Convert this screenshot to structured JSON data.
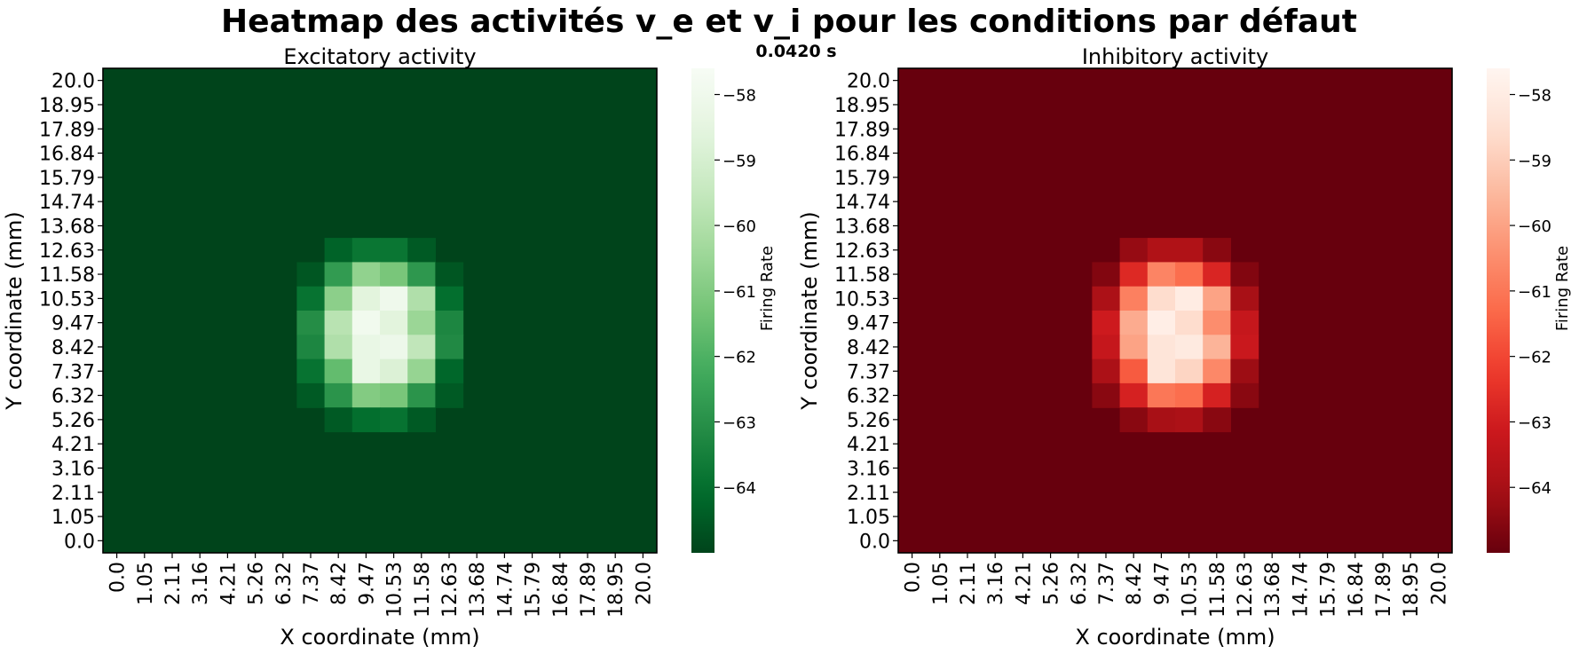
{
  "figure": {
    "suptitle": "Heatmap des activités v_e et v_i pour les conditions par défaut",
    "time_label": "0.0420 s"
  },
  "chart_data": [
    {
      "type": "heatmap",
      "title": "Excitatory activity",
      "xlabel": "X coordinate (mm)",
      "ylabel": "Y coordinate (mm)",
      "colorbar_label": "Firing Rate",
      "colormap": "Greens",
      "color_low": "#00441b",
      "color_high": "#f7fcf5",
      "x_ticks": [
        "0.0",
        "1.05",
        "2.11",
        "3.16",
        "4.21",
        "5.26",
        "6.32",
        "7.37",
        "8.42",
        "9.47",
        "10.53",
        "11.58",
        "12.63",
        "13.68",
        "14.74",
        "15.79",
        "16.84",
        "17.89",
        "18.95",
        "20.0"
      ],
      "y_ticks": [
        "20.0",
        "18.95",
        "17.89",
        "16.84",
        "15.79",
        "14.74",
        "13.68",
        "12.63",
        "11.58",
        "10.53",
        "9.47",
        "8.42",
        "7.37",
        "6.32",
        "5.26",
        "4.21",
        "3.16",
        "2.11",
        "1.05",
        "0.0"
      ],
      "colorbar_ticks": [
        -58,
        -59,
        -60,
        -61,
        -62,
        -63,
        -64
      ],
      "vmin": -65.0,
      "vmax": -57.6,
      "background_value": -65.0,
      "grid": false,
      "cells": [
        {
          "row": 7,
          "col": 8,
          "value": -64.3
        },
        {
          "row": 7,
          "col": 9,
          "value": -63.8
        },
        {
          "row": 7,
          "col": 10,
          "value": -63.8
        },
        {
          "row": 7,
          "col": 11,
          "value": -64.5
        },
        {
          "row": 8,
          "col": 7,
          "value": -64.6
        },
        {
          "row": 8,
          "col": 8,
          "value": -62.7
        },
        {
          "row": 8,
          "col": 9,
          "value": -60.7
        },
        {
          "row": 8,
          "col": 10,
          "value": -61.2
        },
        {
          "row": 8,
          "col": 11,
          "value": -62.8
        },
        {
          "row": 8,
          "col": 12,
          "value": -64.6
        },
        {
          "row": 9,
          "col": 7,
          "value": -63.9
        },
        {
          "row": 9,
          "col": 8,
          "value": -60.8
        },
        {
          "row": 9,
          "col": 9,
          "value": -58.6
        },
        {
          "row": 9,
          "col": 10,
          "value": -58.0
        },
        {
          "row": 9,
          "col": 11,
          "value": -60.0
        },
        {
          "row": 9,
          "col": 12,
          "value": -64.0
        },
        {
          "row": 10,
          "col": 7,
          "value": -63.1
        },
        {
          "row": 10,
          "col": 8,
          "value": -59.8
        },
        {
          "row": 10,
          "col": 9,
          "value": -57.9
        },
        {
          "row": 10,
          "col": 10,
          "value": -58.6
        },
        {
          "row": 10,
          "col": 11,
          "value": -60.5
        },
        {
          "row": 10,
          "col": 12,
          "value": -63.3
        },
        {
          "row": 11,
          "col": 7,
          "value": -63.3
        },
        {
          "row": 11,
          "col": 8,
          "value": -60.0
        },
        {
          "row": 11,
          "col": 9,
          "value": -58.3
        },
        {
          "row": 11,
          "col": 10,
          "value": -58.1
        },
        {
          "row": 11,
          "col": 11,
          "value": -59.6
        },
        {
          "row": 11,
          "col": 12,
          "value": -63.2
        },
        {
          "row": 12,
          "col": 7,
          "value": -63.9
        },
        {
          "row": 12,
          "col": 8,
          "value": -61.6
        },
        {
          "row": 12,
          "col": 9,
          "value": -58.3
        },
        {
          "row": 12,
          "col": 10,
          "value": -58.8
        },
        {
          "row": 12,
          "col": 11,
          "value": -60.6
        },
        {
          "row": 12,
          "col": 12,
          "value": -64.2
        },
        {
          "row": 13,
          "col": 7,
          "value": -64.5
        },
        {
          "row": 13,
          "col": 8,
          "value": -62.9
        },
        {
          "row": 13,
          "col": 9,
          "value": -61.0
        },
        {
          "row": 13,
          "col": 10,
          "value": -61.2
        },
        {
          "row": 13,
          "col": 11,
          "value": -62.9
        },
        {
          "row": 13,
          "col": 12,
          "value": -64.5
        },
        {
          "row": 14,
          "col": 8,
          "value": -64.5
        },
        {
          "row": 14,
          "col": 9,
          "value": -64.0
        },
        {
          "row": 14,
          "col": 10,
          "value": -63.9
        },
        {
          "row": 14,
          "col": 11,
          "value": -64.5
        }
      ]
    },
    {
      "type": "heatmap",
      "title": "Inhibitory activity",
      "xlabel": "X coordinate (mm)",
      "ylabel": "Y coordinate (mm)",
      "colorbar_label": "Firing Rate",
      "colormap": "Reds",
      "color_low": "#67000d",
      "color_high": "#fff5f0",
      "x_ticks": [
        "0.0",
        "1.05",
        "2.11",
        "3.16",
        "4.21",
        "5.26",
        "6.32",
        "7.37",
        "8.42",
        "9.47",
        "10.53",
        "11.58",
        "12.63",
        "13.68",
        "14.74",
        "15.79",
        "16.84",
        "17.89",
        "18.95",
        "20.0"
      ],
      "y_ticks": [
        "20.0",
        "18.95",
        "17.89",
        "16.84",
        "15.79",
        "14.74",
        "13.68",
        "12.63",
        "11.58",
        "10.53",
        "9.47",
        "8.42",
        "7.37",
        "6.32",
        "5.26",
        "4.21",
        "3.16",
        "2.11",
        "1.05",
        "0.0"
      ],
      "colorbar_ticks": [
        -58,
        -59,
        -60,
        -61,
        -62,
        -63,
        -64
      ],
      "vmin": -65.0,
      "vmax": -57.6,
      "background_value": -65.0,
      "grid": false,
      "cells": [
        {
          "row": 7,
          "col": 8,
          "value": -64.3
        },
        {
          "row": 7,
          "col": 9,
          "value": -63.8
        },
        {
          "row": 7,
          "col": 10,
          "value": -63.8
        },
        {
          "row": 7,
          "col": 11,
          "value": -64.5
        },
        {
          "row": 8,
          "col": 7,
          "value": -64.6
        },
        {
          "row": 8,
          "col": 8,
          "value": -62.7
        },
        {
          "row": 8,
          "col": 9,
          "value": -60.7
        },
        {
          "row": 8,
          "col": 10,
          "value": -61.2
        },
        {
          "row": 8,
          "col": 11,
          "value": -62.8
        },
        {
          "row": 8,
          "col": 12,
          "value": -64.6
        },
        {
          "row": 9,
          "col": 7,
          "value": -63.9
        },
        {
          "row": 9,
          "col": 8,
          "value": -60.8
        },
        {
          "row": 9,
          "col": 9,
          "value": -58.6
        },
        {
          "row": 9,
          "col": 10,
          "value": -58.0
        },
        {
          "row": 9,
          "col": 11,
          "value": -60.0
        },
        {
          "row": 9,
          "col": 12,
          "value": -64.0
        },
        {
          "row": 10,
          "col": 7,
          "value": -63.1
        },
        {
          "row": 10,
          "col": 8,
          "value": -59.8
        },
        {
          "row": 10,
          "col": 9,
          "value": -57.9
        },
        {
          "row": 10,
          "col": 10,
          "value": -58.6
        },
        {
          "row": 10,
          "col": 11,
          "value": -60.5
        },
        {
          "row": 10,
          "col": 12,
          "value": -63.3
        },
        {
          "row": 11,
          "col": 7,
          "value": -63.3
        },
        {
          "row": 11,
          "col": 8,
          "value": -60.0
        },
        {
          "row": 11,
          "col": 9,
          "value": -58.3
        },
        {
          "row": 11,
          "col": 10,
          "value": -58.1
        },
        {
          "row": 11,
          "col": 11,
          "value": -59.6
        },
        {
          "row": 11,
          "col": 12,
          "value": -63.2
        },
        {
          "row": 12,
          "col": 7,
          "value": -63.9
        },
        {
          "row": 12,
          "col": 8,
          "value": -61.6
        },
        {
          "row": 12,
          "col": 9,
          "value": -58.3
        },
        {
          "row": 12,
          "col": 10,
          "value": -58.8
        },
        {
          "row": 12,
          "col": 11,
          "value": -60.6
        },
        {
          "row": 12,
          "col": 12,
          "value": -64.2
        },
        {
          "row": 13,
          "col": 7,
          "value": -64.5
        },
        {
          "row": 13,
          "col": 8,
          "value": -62.9
        },
        {
          "row": 13,
          "col": 9,
          "value": -61.0
        },
        {
          "row": 13,
          "col": 10,
          "value": -61.2
        },
        {
          "row": 13,
          "col": 11,
          "value": -62.9
        },
        {
          "row": 13,
          "col": 12,
          "value": -64.5
        },
        {
          "row": 14,
          "col": 8,
          "value": -64.5
        },
        {
          "row": 14,
          "col": 9,
          "value": -64.0
        },
        {
          "row": 14,
          "col": 10,
          "value": -63.9
        },
        {
          "row": 14,
          "col": 11,
          "value": -64.5
        }
      ]
    }
  ]
}
